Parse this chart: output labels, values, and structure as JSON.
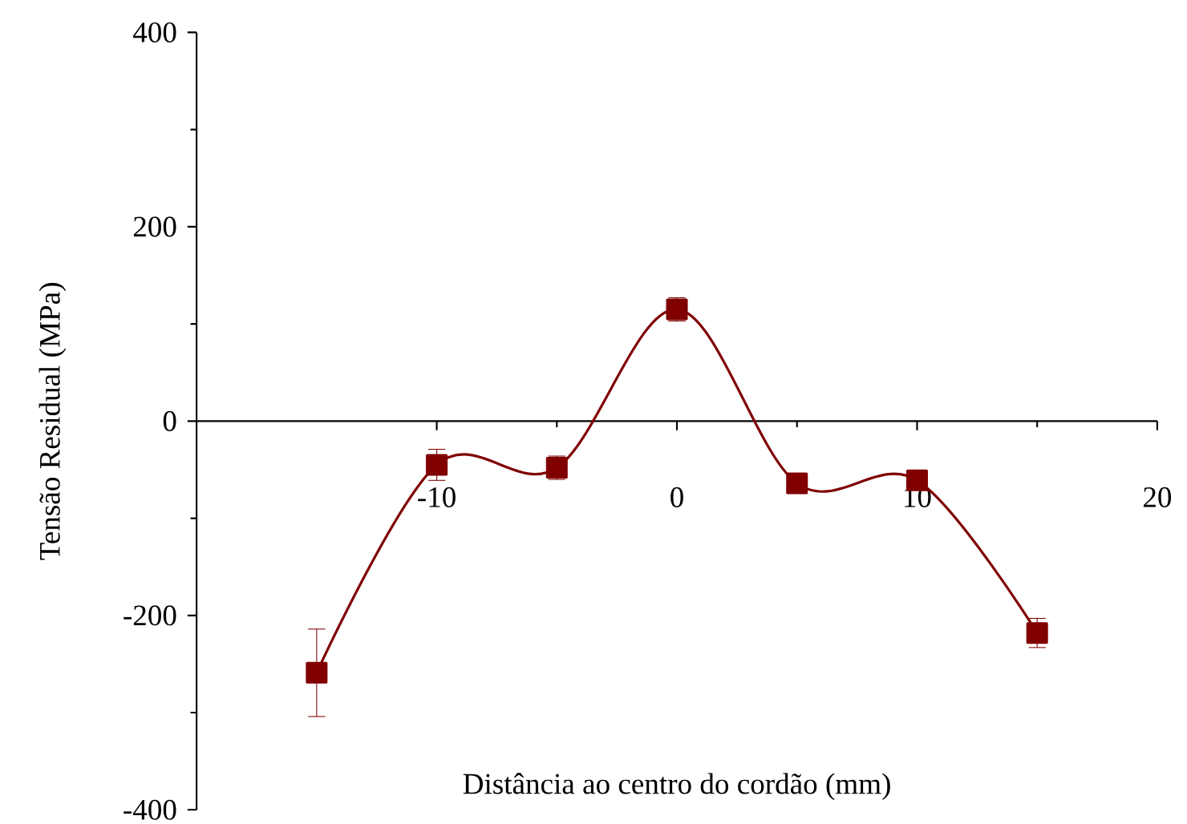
{
  "chart_data": {
    "type": "line",
    "xlabel": "Distância ao centro do cordão (mm)",
    "ylabel": "Tensão Residual (MPa)",
    "x": [
      -15,
      -10,
      -5,
      0,
      5,
      10,
      15
    ],
    "values": [
      -259,
      -45,
      -48,
      115,
      -64,
      -61,
      -218
    ],
    "errors": [
      45,
      16,
      12,
      12,
      null,
      null,
      15
    ],
    "color": "#800000",
    "marker": "square",
    "grid": false,
    "xlim": [
      -20,
      20
    ],
    "ylim": [
      -400,
      400
    ],
    "xticks": [
      -10,
      0,
      10,
      20
    ],
    "yticks": [
      -400,
      -200,
      0,
      200,
      400
    ]
  }
}
